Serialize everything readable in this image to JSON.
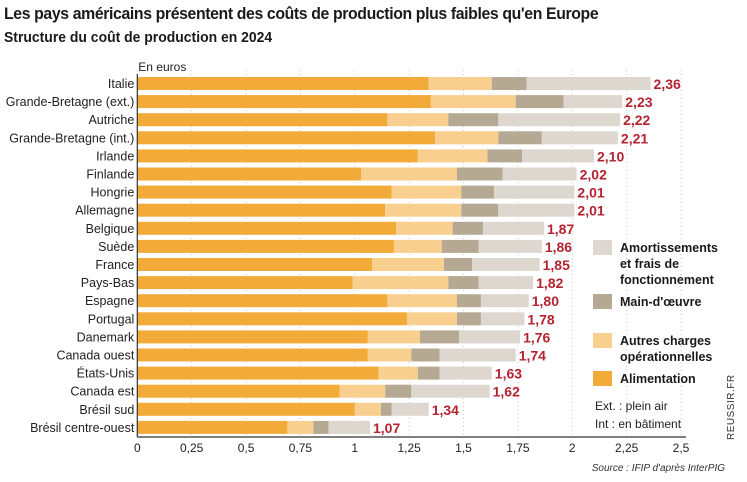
{
  "title": "Les pays américains présentent des coûts de production plus faibles qu'en Europe",
  "subtitle": "Structure du coût de production en 2024",
  "source": "Source : IFIP d'après InterPIG",
  "brand": "REUSSIR.FR",
  "chart_data": {
    "type": "bar",
    "orientation": "horizontal",
    "stacked": true,
    "unit_label": "En euros",
    "xlim": [
      0,
      2.5
    ],
    "xticks": [
      "0",
      "0,25",
      "0,5",
      "0,75",
      "1",
      "1,25",
      "1,5",
      "1,75",
      "2",
      "2,25",
      "2,5"
    ],
    "grid": true,
    "legend_placement": "right",
    "categories": [
      "Italie",
      "Grande-Bretagne (ext.)",
      "Autriche",
      "Grande-Bretagne (int.)",
      "Irlande",
      "Finlande",
      "Hongrie",
      "Allemagne",
      "Belgique",
      "Suède",
      "France",
      "Pays-Bas",
      "Espagne",
      "Portugal",
      "Danemark",
      "Canada ouest",
      "États-Unis",
      "Canada est",
      "Brésil sud",
      "Brésil centre-ouest"
    ],
    "totals": [
      "2,36",
      "2,23",
      "2,22",
      "2,21",
      "2,10",
      "2,02",
      "2,01",
      "2,01",
      "1,87",
      "1,86",
      "1,85",
      "1,82",
      "1,80",
      "1,78",
      "1,76",
      "1,74",
      "1,63",
      "1,62",
      "1,34",
      "1,07"
    ],
    "series": [
      {
        "name": "Alimentation",
        "color": "#f2aa38",
        "values": [
          1.34,
          1.35,
          1.15,
          1.37,
          1.29,
          1.03,
          1.17,
          1.14,
          1.19,
          1.18,
          1.08,
          0.99,
          1.15,
          1.24,
          1.06,
          1.06,
          1.11,
          0.93,
          1.0,
          0.69
        ]
      },
      {
        "name": "Autres charges opérationnelles",
        "color": "#f8cf8e",
        "values": [
          0.29,
          0.39,
          0.28,
          0.29,
          0.32,
          0.44,
          0.32,
          0.35,
          0.26,
          0.22,
          0.33,
          0.44,
          0.32,
          0.23,
          0.24,
          0.2,
          0.18,
          0.21,
          0.12,
          0.12
        ]
      },
      {
        "name": "Main-d'œuvre",
        "color": "#b6a993",
        "values": [
          0.16,
          0.22,
          0.23,
          0.2,
          0.16,
          0.21,
          0.15,
          0.17,
          0.14,
          0.17,
          0.13,
          0.14,
          0.11,
          0.11,
          0.18,
          0.13,
          0.1,
          0.12,
          0.05,
          0.07
        ]
      },
      {
        "name": "Amortissements et frais de fonctionnement",
        "color": "#ddd7d0",
        "values": [
          0.57,
          0.27,
          0.56,
          0.35,
          0.33,
          0.34,
          0.37,
          0.35,
          0.28,
          0.29,
          0.31,
          0.25,
          0.22,
          0.2,
          0.28,
          0.35,
          0.24,
          0.36,
          0.17,
          0.19
        ]
      }
    ],
    "legend_entries": [
      {
        "lines": [
          "Amortissements",
          "et frais de",
          "fonctionnement"
        ],
        "color": "#ddd7d0"
      },
      {
        "lines": [
          "Main-d'œuvre"
        ],
        "color": "#b6a993"
      },
      {
        "lines": [
          "Autres charges",
          "opérationnelles"
        ],
        "color": "#f8cf8e"
      },
      {
        "lines": [
          "Alimentation"
        ],
        "color": "#f2aa38"
      }
    ],
    "notes": [
      "Ext. : plein air",
      "Int : en bâtiment"
    ],
    "total_label_color": "#b32430"
  }
}
